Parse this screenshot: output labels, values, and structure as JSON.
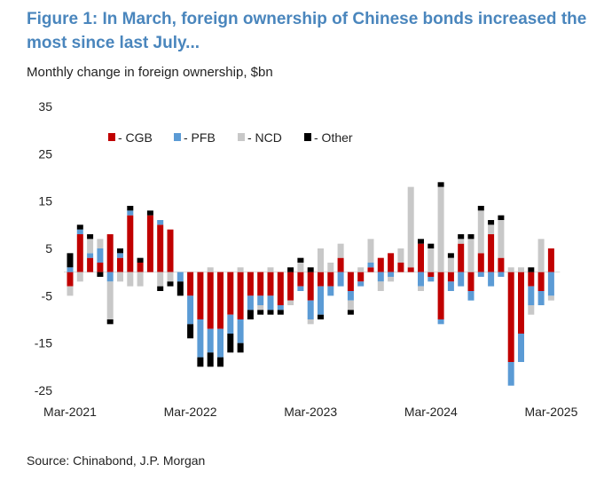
{
  "header": {
    "title": "Figure 1: In March, foreign ownership of Chinese bonds increased the most since last July...",
    "subtitle": "Monthly change in foreign ownership, $bn"
  },
  "footer": {
    "source": "Source: Chinabond, J.P. Morgan"
  },
  "chart_data": {
    "type": "bar",
    "stacked": true,
    "title": "Figure 1: In March, foreign ownership of Chinese bonds increased the most since last July...",
    "ylabel": "Monthly change in foreign ownership, $bn",
    "xlabel": "",
    "ylim": [
      -25,
      35
    ],
    "yticks": [
      35,
      25,
      15,
      5,
      -5,
      -15,
      -25
    ],
    "xticks": [
      "Mar-2021",
      "Mar-2022",
      "Mar-2023",
      "Mar-2024",
      "Mar-2025"
    ],
    "legend_position": "top-left",
    "colors": {
      "CGB": "#c00000",
      "PFB": "#5b9bd5",
      "NCD": "#c8c8c8",
      "Other": "#000000"
    },
    "categories": [
      "Mar-2021",
      "Apr-2021",
      "May-2021",
      "Jun-2021",
      "Jul-2021",
      "Aug-2021",
      "Sep-2021",
      "Oct-2021",
      "Nov-2021",
      "Dec-2021",
      "Jan-2022",
      "Feb-2022",
      "Mar-2022",
      "Apr-2022",
      "May-2022",
      "Jun-2022",
      "Jul-2022",
      "Aug-2022",
      "Sep-2022",
      "Oct-2022",
      "Nov-2022",
      "Dec-2022",
      "Jan-2023",
      "Feb-2023",
      "Mar-2023",
      "Apr-2023",
      "May-2023",
      "Jun-2023",
      "Jul-2023",
      "Aug-2023",
      "Sep-2023",
      "Oct-2023",
      "Nov-2023",
      "Dec-2023",
      "Jan-2024",
      "Feb-2024",
      "Mar-2024",
      "Apr-2024",
      "May-2024",
      "Jun-2024",
      "Jul-2024",
      "Aug-2024",
      "Sep-2024",
      "Oct-2024",
      "Nov-2024",
      "Dec-2024",
      "Jan-2025",
      "Feb-2025",
      "Mar-2025"
    ],
    "series": [
      {
        "name": "- CGB",
        "values": [
          -3,
          8,
          3,
          2,
          8,
          3,
          12,
          2,
          12,
          10,
          9,
          0,
          -5,
          -10,
          -12,
          -12,
          -9,
          -10,
          -5,
          -5,
          -5,
          -7,
          -6,
          -3,
          -6,
          -3,
          -3,
          3,
          -4,
          -2,
          1,
          3,
          4,
          2,
          1,
          6,
          -1,
          -10,
          -2,
          6,
          -4,
          4,
          8,
          3,
          -19,
          -13,
          -3,
          -4,
          5
        ]
      },
      {
        "name": "- PFB",
        "values": [
          1,
          1,
          1,
          3,
          -2,
          1,
          1,
          0,
          0,
          1,
          0,
          -2,
          -6,
          -8,
          -5,
          -6,
          -4,
          -5,
          -3,
          -2,
          -3,
          -1,
          0,
          -1,
          -4,
          -6,
          -2,
          -3,
          -2,
          -1,
          1,
          -2,
          -1,
          0,
          0,
          -3,
          -1,
          -1,
          -2,
          -3,
          -2,
          -1,
          -3,
          -1,
          -5,
          -6,
          -4,
          -3,
          -5
        ]
      },
      {
        "name": "- NCD",
        "values": [
          -2,
          -2,
          3,
          2,
          -8,
          -2,
          -3,
          -3,
          0,
          -3,
          -2,
          0,
          0,
          0,
          1,
          0,
          0,
          1,
          0,
          -1,
          1,
          0,
          -1,
          2,
          -1,
          5,
          2,
          3,
          -2,
          1,
          5,
          -2,
          -1,
          3,
          17,
          -1,
          5,
          18,
          3,
          1,
          7,
          9,
          2,
          8,
          1,
          1,
          -2,
          7,
          -1
        ]
      },
      {
        "name": "- Other",
        "values": [
          3,
          1,
          1,
          -1,
          -1,
          1,
          1,
          1,
          1,
          -1,
          -1,
          -3,
          -3,
          -2,
          -3,
          -2,
          -4,
          -2,
          -2,
          -1,
          -1,
          -1,
          1,
          1,
          1,
          -1,
          0,
          0,
          -1,
          0,
          0,
          0,
          0,
          0,
          0,
          1,
          1,
          1,
          1,
          1,
          1,
          1,
          1,
          1,
          0,
          0,
          1,
          0,
          0
        ]
      }
    ]
  }
}
